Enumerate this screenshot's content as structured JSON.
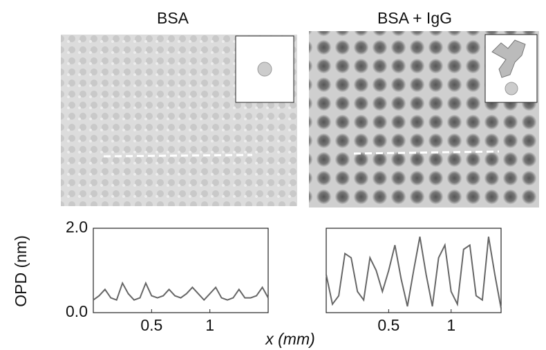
{
  "chart_data": [
    {
      "type": "line",
      "title": "BSA",
      "ylabel": "OPD (nm)",
      "xlabel": "x (mm)",
      "x": [
        0,
        0.05,
        0.1,
        0.15,
        0.2,
        0.25,
        0.3,
        0.35,
        0.4,
        0.45,
        0.5,
        0.55,
        0.6,
        0.65,
        0.7,
        0.75,
        0.8,
        0.85,
        0.9,
        0.95,
        1.0,
        1.05,
        1.1,
        1.15,
        1.2,
        1.25,
        1.3,
        1.35,
        1.4,
        1.45,
        1.5
      ],
      "series": [
        {
          "color": "#666666",
          "values": [
            0.3,
            0.4,
            0.55,
            0.35,
            0.3,
            0.7,
            0.45,
            0.3,
            0.35,
            0.7,
            0.4,
            0.35,
            0.4,
            0.55,
            0.4,
            0.35,
            0.45,
            0.6,
            0.45,
            0.3,
            0.45,
            0.6,
            0.35,
            0.3,
            0.35,
            0.55,
            0.35,
            0.35,
            0.4,
            0.6,
            0.35
          ]
        }
      ],
      "xlim": [
        0,
        1.5
      ],
      "ylim": [
        0,
        2.0
      ],
      "xticks": [
        0.5,
        1
      ],
      "yticks": [
        {
          "value": 0,
          "label": "0.0"
        },
        {
          "value": 2.0,
          "label": "2.0"
        }
      ]
    },
    {
      "type": "line",
      "title": "BSA + IgG",
      "x": [
        0,
        0.05,
        0.1,
        0.15,
        0.2,
        0.25,
        0.3,
        0.35,
        0.4,
        0.45,
        0.5,
        0.55,
        0.6,
        0.65,
        0.7,
        0.75,
        0.8,
        0.85,
        0.9,
        0.95,
        1.0,
        1.05,
        1.1,
        1.15,
        1.2,
        1.25,
        1.3,
        1.35,
        1.4
      ],
      "series": [
        {
          "color": "#666666",
          "values": [
            0.9,
            0.2,
            0.4,
            1.4,
            1.3,
            0.5,
            0.3,
            1.3,
            1.0,
            0.5,
            1.0,
            1.6,
            0.8,
            0.15,
            1.0,
            1.8,
            0.9,
            0.15,
            1.3,
            1.6,
            0.5,
            0.2,
            1.5,
            1.6,
            0.4,
            0.3,
            1.8,
            0.9,
            0.1
          ]
        }
      ],
      "xlim": [
        0,
        1.4
      ],
      "ylim": [
        0,
        2.0
      ],
      "xticks": [
        0.5,
        1
      ]
    }
  ]
}
